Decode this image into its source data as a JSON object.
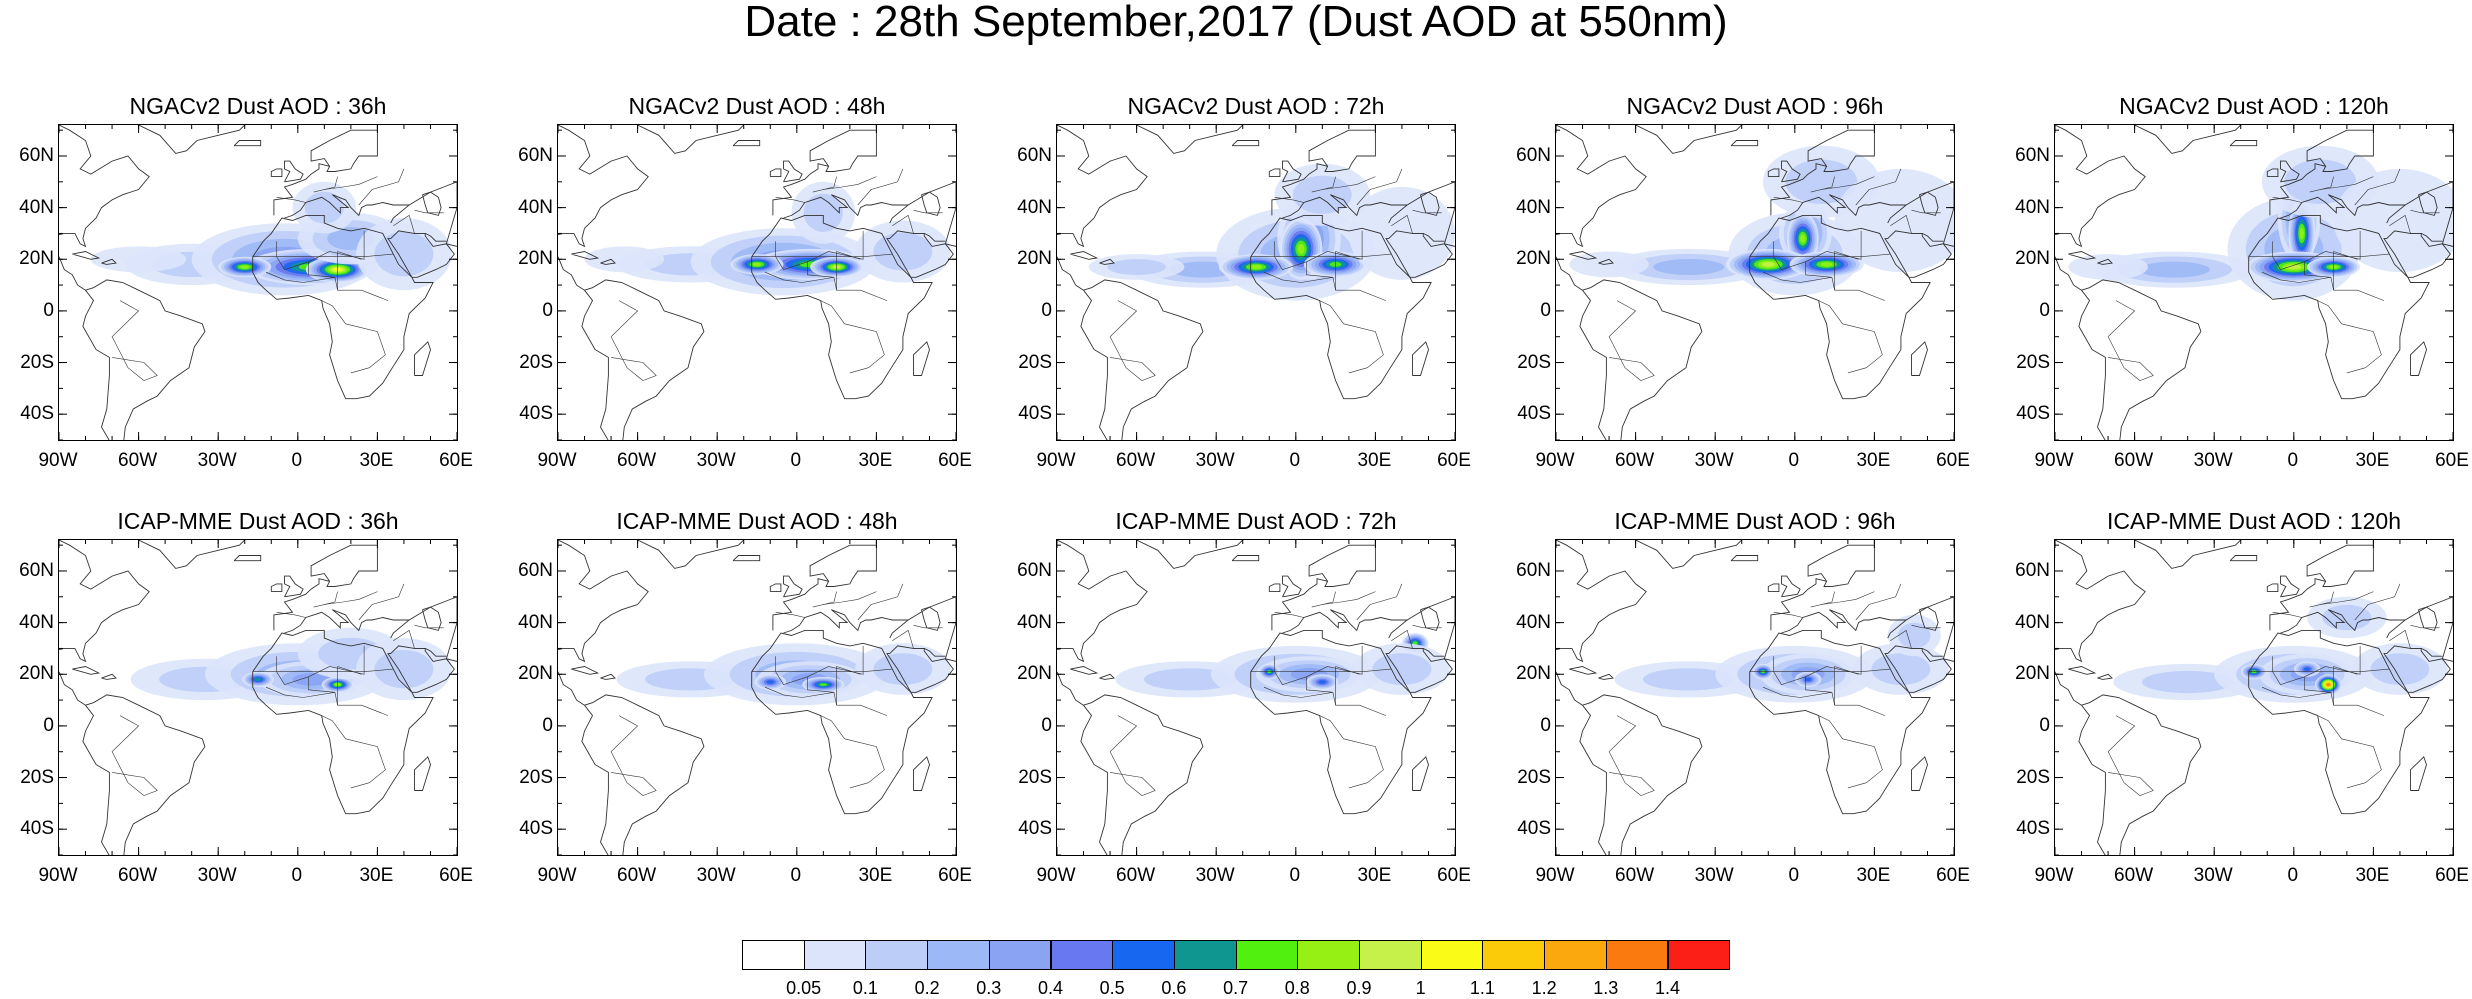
{
  "title": "Date : 28th September,2017 (Dust AOD at 550nm)",
  "panels": [
    {
      "title": "NGACv2 Dust AOD : 36h",
      "model": "NGACv2",
      "lead": "36h"
    },
    {
      "title": "NGACv2 Dust AOD : 48h",
      "model": "NGACv2",
      "lead": "48h"
    },
    {
      "title": "NGACv2 Dust AOD : 72h",
      "model": "NGACv2",
      "lead": "72h"
    },
    {
      "title": "NGACv2 Dust AOD : 96h",
      "model": "NGACv2",
      "lead": "96h"
    },
    {
      "title": "NGACv2 Dust AOD : 120h",
      "model": "NGACv2",
      "lead": "120h"
    },
    {
      "title": "ICAP-MME Dust AOD : 36h",
      "model": "ICAP-MME",
      "lead": "36h"
    },
    {
      "title": "ICAP-MME Dust AOD : 48h",
      "model": "ICAP-MME",
      "lead": "48h"
    },
    {
      "title": "ICAP-MME Dust AOD : 72h",
      "model": "ICAP-MME",
      "lead": "72h"
    },
    {
      "title": "ICAP-MME Dust AOD : 96h",
      "model": "ICAP-MME",
      "lead": "96h"
    },
    {
      "title": "ICAP-MME Dust AOD : 120h",
      "model": "ICAP-MME",
      "lead": "120h"
    }
  ],
  "lat_ticks": [
    "60N",
    "40N",
    "20N",
    "0",
    "20S",
    "40S"
  ],
  "lon_ticks": [
    "90W",
    "60W",
    "30W",
    "0",
    "30E",
    "60E"
  ],
  "colorbar": {
    "labels": [
      "0.05",
      "0.1",
      "0.2",
      "0.3",
      "0.4",
      "0.5",
      "0.6",
      "0.7",
      "0.8",
      "0.9",
      "1",
      "1.1",
      "1.2",
      "1.3",
      "1.4"
    ],
    "colors": [
      "#ffffff",
      "#dbe4fb",
      "#bccdf8",
      "#9db8f6",
      "#8aa3f3",
      "#6778f0",
      "#1767f0",
      "#0f9690",
      "#52f00f",
      "#96f014",
      "#c6f04a",
      "#fbfb18",
      "#fbca08",
      "#fba70e",
      "#fb7a0f",
      "#fb1f17"
    ]
  }
}
